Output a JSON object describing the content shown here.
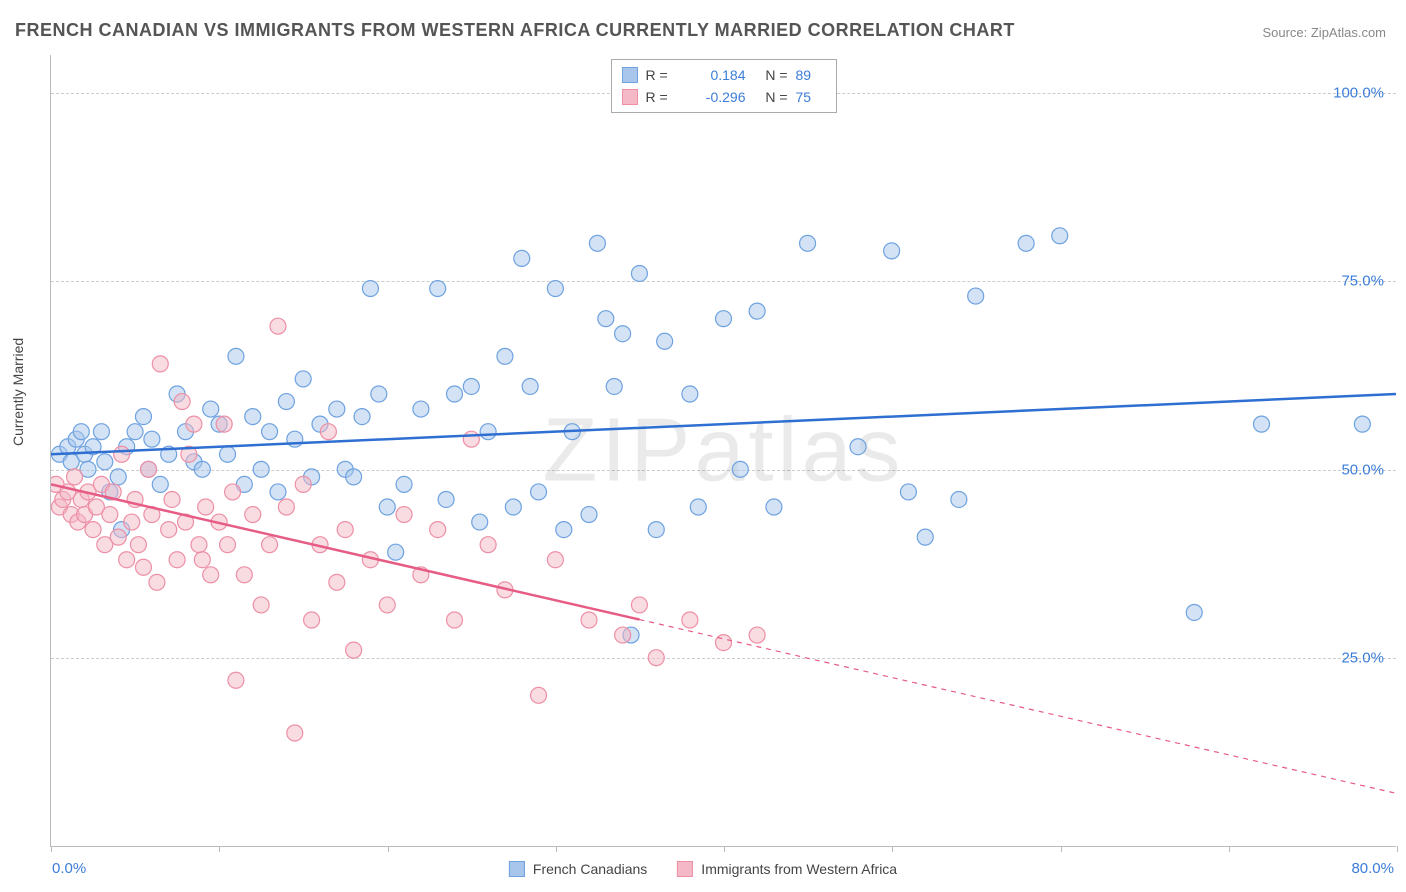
{
  "title": "FRENCH CANADIAN VS IMMIGRANTS FROM WESTERN AFRICA CURRENTLY MARRIED CORRELATION CHART",
  "source_label": "Source: ZipAtlas.com",
  "ylabel": "Currently Married",
  "watermark": "ZIPatlas",
  "chart": {
    "type": "scatter",
    "xlim": [
      0,
      80
    ],
    "ylim": [
      0,
      105
    ],
    "xticks": [
      0,
      80
    ],
    "xtick_labels": [
      "0.0%",
      "80.0%"
    ],
    "yticks": [
      25,
      50,
      75,
      100
    ],
    "ytick_labels": [
      "25.0%",
      "50.0%",
      "75.0%",
      "100.0%"
    ],
    "vticks_minor": [
      0,
      10,
      20,
      30,
      40,
      50,
      60,
      70,
      80
    ],
    "background_color": "#ffffff",
    "grid_color": "#cccccc",
    "axis_color": "#bbbbbb",
    "tick_label_color": "#3b7dd8",
    "marker_radius": 8,
    "marker_opacity": 0.5,
    "line_width": 2.5
  },
  "series": [
    {
      "name": "French Canadians",
      "fill_color": "#a8c5eb",
      "stroke_color": "#6ea2e0",
      "line_color": "#2e6fd1",
      "R": "0.184",
      "N": "89",
      "trend": {
        "x1": 0,
        "y1": 52,
        "x2": 80,
        "y2": 60,
        "solid_until_x": 80
      },
      "points": [
        [
          0.5,
          52
        ],
        [
          1,
          53
        ],
        [
          1.2,
          51
        ],
        [
          1.5,
          54
        ],
        [
          1.8,
          55
        ],
        [
          2,
          52
        ],
        [
          2.2,
          50
        ],
        [
          2.5,
          53
        ],
        [
          3,
          55
        ],
        [
          3.2,
          51
        ],
        [
          3.5,
          47
        ],
        [
          4,
          49
        ],
        [
          4.2,
          42
        ],
        [
          4.5,
          53
        ],
        [
          5,
          55
        ],
        [
          5.5,
          57
        ],
        [
          5.8,
          50
        ],
        [
          6,
          54
        ],
        [
          6.5,
          48
        ],
        [
          7,
          52
        ],
        [
          7.5,
          60
        ],
        [
          8,
          55
        ],
        [
          8.5,
          51
        ],
        [
          9,
          50
        ],
        [
          9.5,
          58
        ],
        [
          10,
          56
        ],
        [
          10.5,
          52
        ],
        [
          11,
          65
        ],
        [
          11.5,
          48
        ],
        [
          12,
          57
        ],
        [
          12.5,
          50
        ],
        [
          13,
          55
        ],
        [
          13.5,
          47
        ],
        [
          14,
          59
        ],
        [
          14.5,
          54
        ],
        [
          15,
          62
        ],
        [
          15.5,
          49
        ],
        [
          16,
          56
        ],
        [
          17,
          58
        ],
        [
          17.5,
          50
        ],
        [
          18,
          49
        ],
        [
          18.5,
          57
        ],
        [
          19,
          74
        ],
        [
          19.5,
          60
        ],
        [
          20,
          45
        ],
        [
          20.5,
          39
        ],
        [
          21,
          48
        ],
        [
          22,
          58
        ],
        [
          23,
          74
        ],
        [
          23.5,
          46
        ],
        [
          24,
          60
        ],
        [
          25,
          61
        ],
        [
          25.5,
          43
        ],
        [
          26,
          55
        ],
        [
          27,
          65
        ],
        [
          27.5,
          45
        ],
        [
          28,
          78
        ],
        [
          28.5,
          61
        ],
        [
          29,
          47
        ],
        [
          30,
          74
        ],
        [
          30.5,
          42
        ],
        [
          31,
          55
        ],
        [
          32,
          44
        ],
        [
          32.5,
          80
        ],
        [
          33,
          70
        ],
        [
          33.5,
          61
        ],
        [
          34,
          68
        ],
        [
          34.5,
          28
        ],
        [
          35,
          76
        ],
        [
          36,
          42
        ],
        [
          36.5,
          67
        ],
        [
          38,
          60
        ],
        [
          38.5,
          45
        ],
        [
          40,
          70
        ],
        [
          41,
          50
        ],
        [
          42,
          71
        ],
        [
          43,
          45
        ],
        [
          45,
          80
        ],
        [
          48,
          53
        ],
        [
          50,
          79
        ],
        [
          51,
          47
        ],
        [
          52,
          41
        ],
        [
          54,
          46
        ],
        [
          55,
          73
        ],
        [
          58,
          80
        ],
        [
          60,
          81
        ],
        [
          68,
          31
        ],
        [
          72,
          56
        ],
        [
          78,
          56
        ]
      ]
    },
    {
      "name": "Immigrants from Western Africa",
      "fill_color": "#f4b8c6",
      "stroke_color": "#ed8fa5",
      "line_color": "#e65c84",
      "R": "-0.296",
      "N": "75",
      "trend": {
        "x1": 0,
        "y1": 48,
        "x2": 80,
        "y2": 7,
        "solid_until_x": 35
      },
      "points": [
        [
          0.3,
          48
        ],
        [
          0.5,
          45
        ],
        [
          0.7,
          46
        ],
        [
          1,
          47
        ],
        [
          1.2,
          44
        ],
        [
          1.4,
          49
        ],
        [
          1.6,
          43
        ],
        [
          1.8,
          46
        ],
        [
          2,
          44
        ],
        [
          2.2,
          47
        ],
        [
          2.5,
          42
        ],
        [
          2.7,
          45
        ],
        [
          3,
          48
        ],
        [
          3.2,
          40
        ],
        [
          3.5,
          44
        ],
        [
          3.7,
          47
        ],
        [
          4,
          41
        ],
        [
          4.2,
          52
        ],
        [
          4.5,
          38
        ],
        [
          4.8,
          43
        ],
        [
          5,
          46
        ],
        [
          5.2,
          40
        ],
        [
          5.5,
          37
        ],
        [
          5.8,
          50
        ],
        [
          6,
          44
        ],
        [
          6.3,
          35
        ],
        [
          6.5,
          64
        ],
        [
          7,
          42
        ],
        [
          7.2,
          46
        ],
        [
          7.5,
          38
        ],
        [
          7.8,
          59
        ],
        [
          8,
          43
        ],
        [
          8.2,
          52
        ],
        [
          8.5,
          56
        ],
        [
          8.8,
          40
        ],
        [
          9,
          38
        ],
        [
          9.2,
          45
        ],
        [
          9.5,
          36
        ],
        [
          10,
          43
        ],
        [
          10.3,
          56
        ],
        [
          10.5,
          40
        ],
        [
          10.8,
          47
        ],
        [
          11,
          22
        ],
        [
          11.5,
          36
        ],
        [
          12,
          44
        ],
        [
          12.5,
          32
        ],
        [
          13,
          40
        ],
        [
          13.5,
          69
        ],
        [
          14,
          45
        ],
        [
          14.5,
          15
        ],
        [
          15,
          48
        ],
        [
          15.5,
          30
        ],
        [
          16,
          40
        ],
        [
          16.5,
          55
        ],
        [
          17,
          35
        ],
        [
          17.5,
          42
        ],
        [
          18,
          26
        ],
        [
          19,
          38
        ],
        [
          20,
          32
        ],
        [
          21,
          44
        ],
        [
          22,
          36
        ],
        [
          23,
          42
        ],
        [
          24,
          30
        ],
        [
          25,
          54
        ],
        [
          26,
          40
        ],
        [
          27,
          34
        ],
        [
          29,
          20
        ],
        [
          30,
          38
        ],
        [
          32,
          30
        ],
        [
          34,
          28
        ],
        [
          35,
          32
        ],
        [
          36,
          25
        ],
        [
          38,
          30
        ],
        [
          40,
          27
        ],
        [
          42,
          28
        ]
      ]
    }
  ],
  "legend_top": {
    "r_label": "R =",
    "n_label": "N ="
  },
  "legend_bottom": {
    "items": [
      "French Canadians",
      "Immigrants from Western Africa"
    ]
  }
}
